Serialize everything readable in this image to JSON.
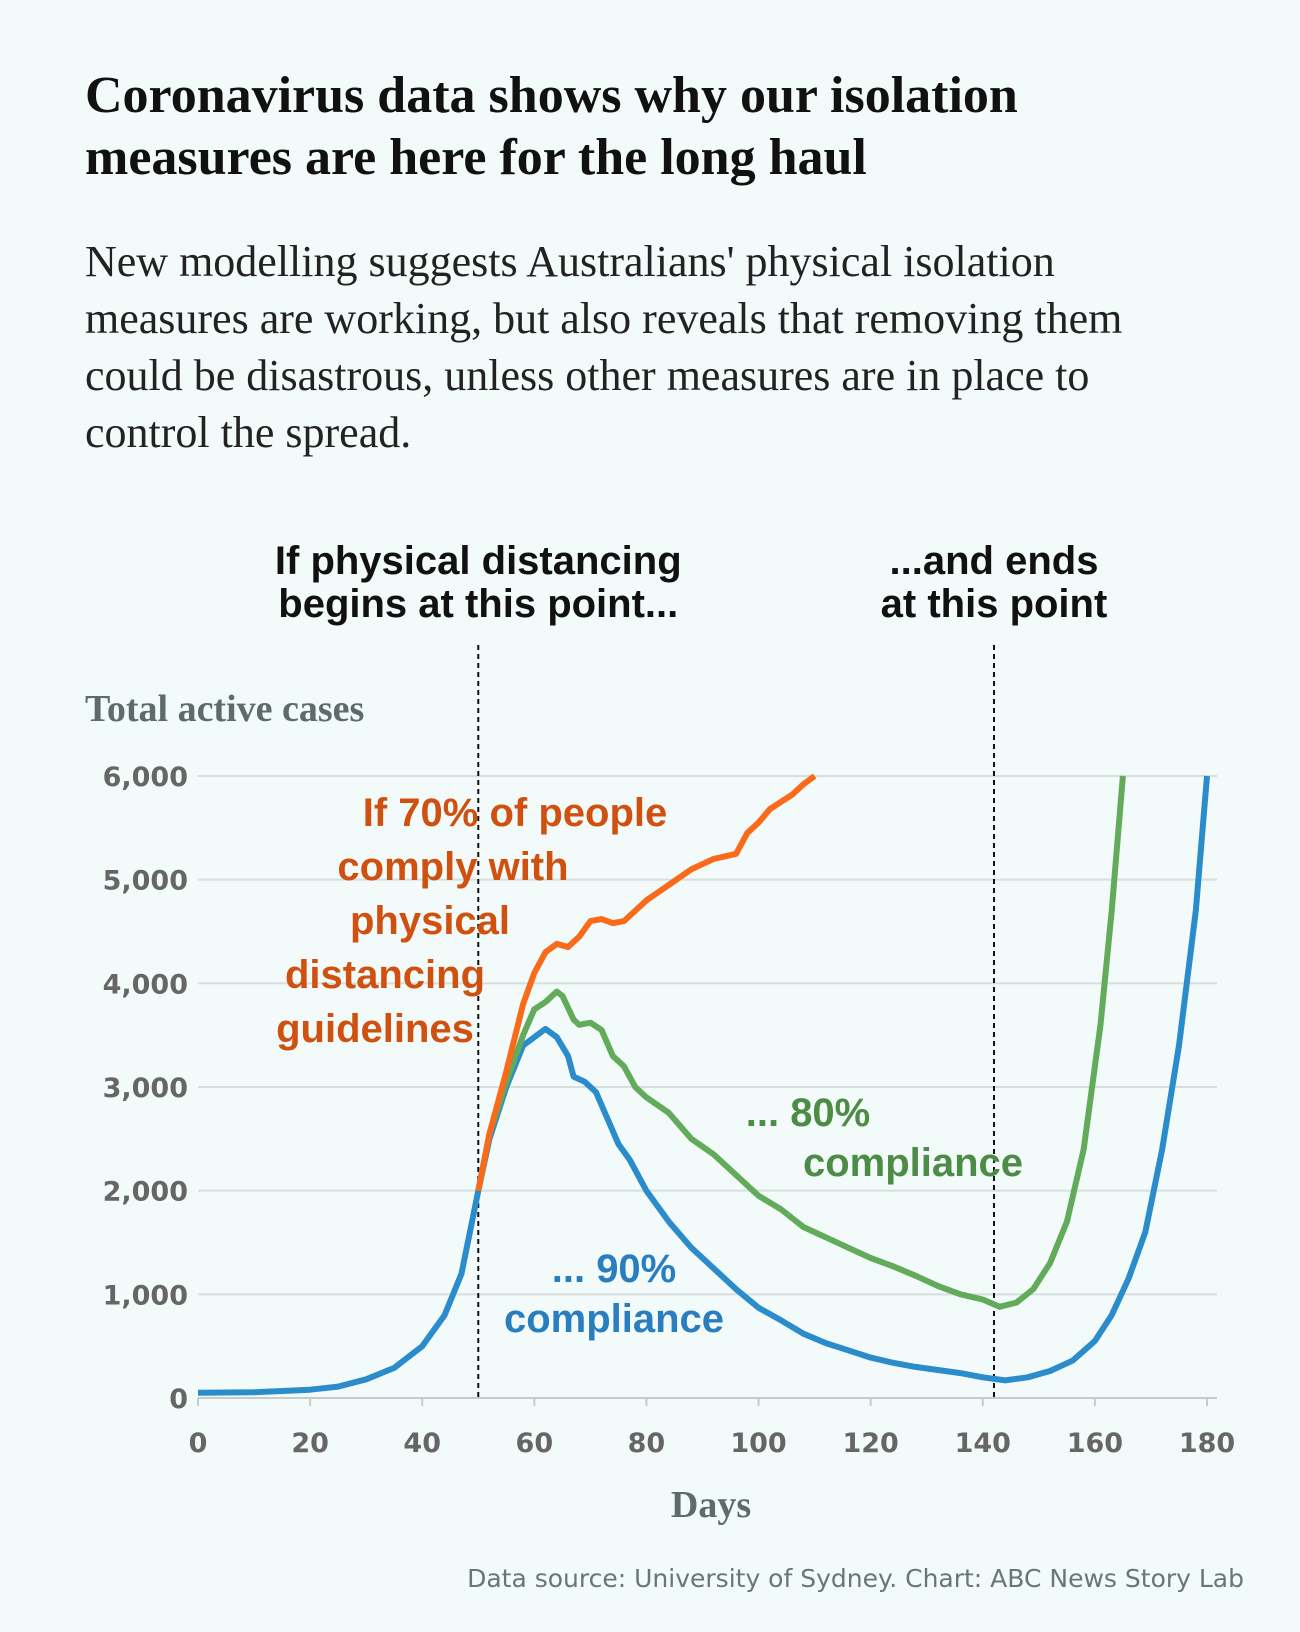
{
  "chart_data": {
    "type": "line",
    "title": "Coronavirus  data shows why our isolation measures are here for the long haul",
    "subtitle": "New modelling suggests Australians' physical isolation measures are working, but also reveals that removing them could be disastrous, unless other measures are in place to control the spread.",
    "annotations": [
      {
        "text": [
          "If physical distancing",
          "begins at this point..."
        ],
        "x": 50
      },
      {
        "text": [
          "...and ends",
          "at this point"
        ],
        "x": 142
      }
    ],
    "y_label": "Total active cases",
    "x_label": "Days",
    "source": "Data source: University of Sydney. Chart: ABC News Story Lab",
    "xlim": [
      0,
      180
    ],
    "xticks": [
      0,
      20,
      40,
      60,
      80,
      100,
      120,
      140,
      160,
      180
    ],
    "ylim": [
      0,
      6000
    ],
    "yticks": [
      0,
      {
        "value": 1000,
        "label": "1,000"
      },
      {
        "value": 2000,
        "label": "2,000"
      },
      {
        "value": 3000,
        "label": "3,000"
      },
      {
        "value": 4000,
        "label": "4,000"
      },
      {
        "value": 5000,
        "label": "5,000"
      },
      {
        "value": 6000,
        "label": "6,000"
      }
    ],
    "grid": true,
    "series": [
      {
        "label": [
          "If 70% of people",
          "comply with",
          "physical",
          "distancing",
          "guidelines"
        ],
        "color": "#f96a1b",
        "label_color": "#d0500f",
        "x": [
          50,
          52,
          55,
          58,
          60,
          62,
          64,
          66,
          68,
          70,
          72,
          74,
          76,
          78,
          80,
          84,
          88,
          92,
          96,
          98,
          100,
          102,
          104,
          106,
          108,
          110
        ],
        "values": [
          2000,
          2550,
          3150,
          3800,
          4100,
          4300,
          4380,
          4350,
          4450,
          4600,
          4620,
          4580,
          4600,
          4700,
          4800,
          4950,
          5100,
          5200,
          5250,
          5450,
          5550,
          5680,
          5750,
          5820,
          5920,
          6000
        ]
      },
      {
        "label": [
          "... 80%",
          "compliance"
        ],
        "color": "#62ab5b",
        "label_color": "#4c8c46",
        "x": [
          50,
          52,
          55,
          58,
          60,
          62,
          64,
          65,
          67,
          68,
          70,
          72,
          74,
          76,
          78,
          80,
          84,
          88,
          92,
          96,
          100,
          104,
          108,
          112,
          116,
          120,
          124,
          128,
          132,
          136,
          140,
          143,
          146,
          149,
          152,
          155,
          158,
          161,
          163,
          165
        ],
        "values": [
          2000,
          2550,
          3050,
          3500,
          3750,
          3820,
          3920,
          3880,
          3650,
          3600,
          3620,
          3550,
          3300,
          3200,
          3000,
          2900,
          2750,
          2500,
          2350,
          2150,
          1950,
          1820,
          1650,
          1550,
          1450,
          1350,
          1270,
          1180,
          1080,
          1000,
          950,
          880,
          920,
          1050,
          1300,
          1700,
          2400,
          3600,
          4700,
          6000
        ]
      },
      {
        "label": [
          "... 90%",
          "compliance"
        ],
        "color": "#2b8ccc",
        "label_color": "#2a7ebf",
        "x": [
          0,
          10,
          20,
          25,
          30,
          35,
          40,
          44,
          47,
          50,
          52,
          55,
          58,
          62,
          64,
          66,
          67,
          69,
          71,
          73,
          75,
          77,
          80,
          84,
          88,
          92,
          96,
          100,
          104,
          108,
          112,
          116,
          120,
          124,
          128,
          132,
          136,
          140,
          144,
          148,
          152,
          156,
          160,
          163,
          166,
          169,
          172,
          175,
          178,
          180
        ],
        "values": [
          50,
          55,
          80,
          110,
          180,
          290,
          500,
          800,
          1200,
          2000,
          2500,
          3000,
          3400,
          3560,
          3480,
          3300,
          3100,
          3050,
          2950,
          2700,
          2450,
          2300,
          2000,
          1700,
          1450,
          1250,
          1050,
          870,
          750,
          620,
          530,
          460,
          390,
          340,
          300,
          270,
          240,
          200,
          170,
          200,
          260,
          360,
          550,
          800,
          1150,
          1600,
          2400,
          3400,
          4700,
          6000
        ]
      }
    ]
  }
}
